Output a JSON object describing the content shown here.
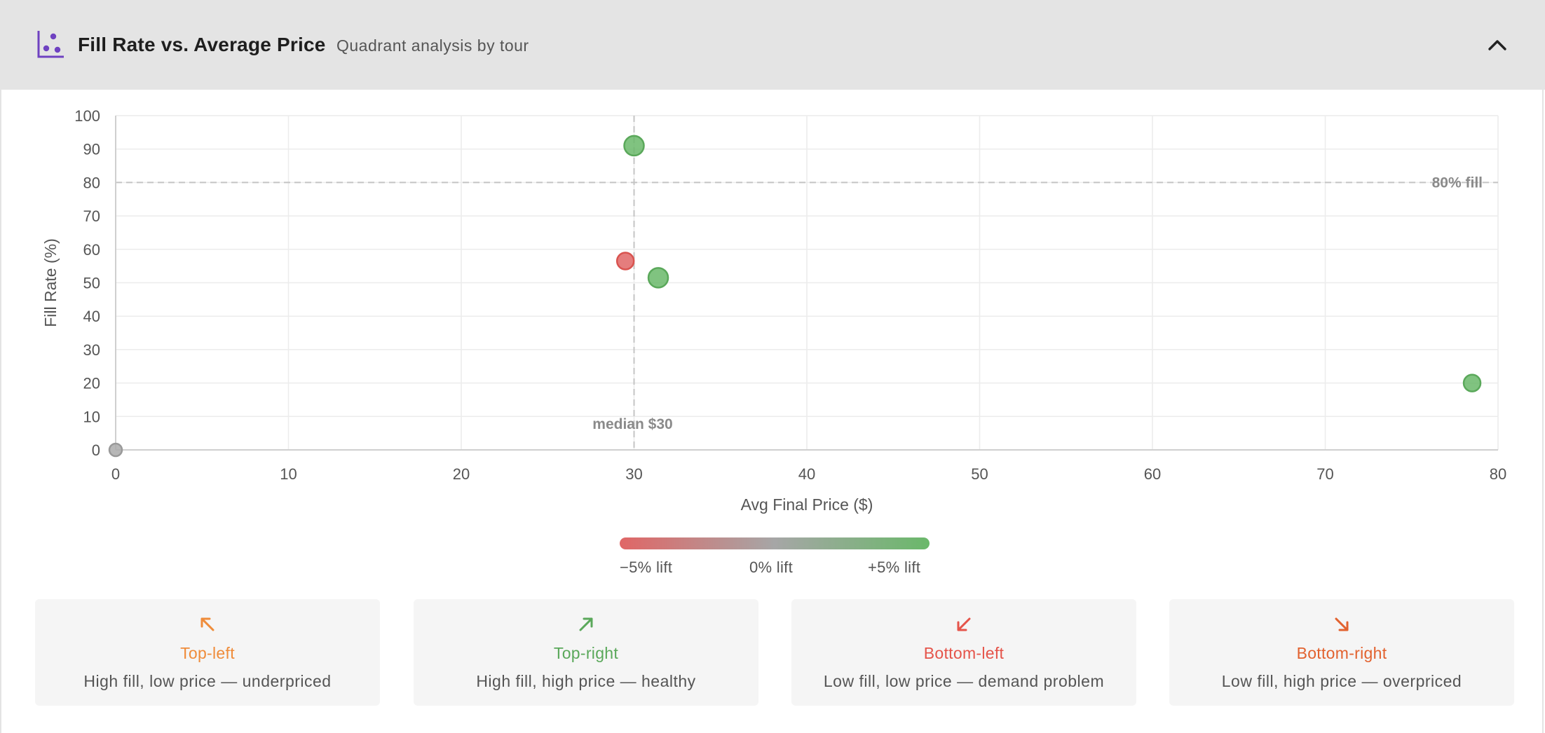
{
  "header": {
    "title": "Fill Rate vs. Average Price",
    "subtitle": "Quadrant analysis by tour",
    "icon": "scatter-chart-icon",
    "collapse_icon": "chevron-up-icon",
    "accent_color": "#6f42c1"
  },
  "chart_data": {
    "type": "scatter",
    "title": "Fill Rate vs. Average Price",
    "xlabel": "Avg Final Price ($)",
    "ylabel": "Fill Rate (%)",
    "xlim": [
      0,
      80
    ],
    "ylim": [
      0,
      100
    ],
    "x_ticks": [
      0,
      10,
      20,
      30,
      40,
      50,
      60,
      70,
      80
    ],
    "y_ticks": [
      0,
      10,
      20,
      30,
      40,
      50,
      60,
      70,
      80,
      90,
      100
    ],
    "grid": true,
    "points": [
      {
        "x": 30,
        "y": 91,
        "lift": "positive",
        "color": "#6ab86a",
        "size": "large"
      },
      {
        "x": 29.5,
        "y": 56.5,
        "lift": "negative",
        "color": "#e06666",
        "size": "medium"
      },
      {
        "x": 31.4,
        "y": 51.5,
        "lift": "positive",
        "color": "#6ab86a",
        "size": "large"
      },
      {
        "x": 78.5,
        "y": 20,
        "lift": "positive",
        "color": "#6ab86a",
        "size": "medium"
      },
      {
        "x": 0,
        "y": 0,
        "lift": "neutral",
        "color": "#aaaaaa",
        "size": "small"
      }
    ],
    "reference_lines": [
      {
        "axis": "x",
        "value": 30,
        "label": "median $30"
      },
      {
        "axis": "y",
        "value": 80,
        "label": "80% fill"
      }
    ]
  },
  "legend": {
    "low_label": "−5% lift",
    "mid_label": "0% lift",
    "high_label": "+5% lift",
    "low_color": "#e06666",
    "mid_color": "#a6a6a6",
    "high_color": "#6ab86a"
  },
  "quadrants": [
    {
      "arrow": "arrow-up-left-icon",
      "title": "Top-left",
      "description": "High fill, low price — underpriced",
      "color": "#ef8c3a"
    },
    {
      "arrow": "arrow-up-right-icon",
      "title": "Top-right",
      "description": "High fill, high price — healthy",
      "color": "#5aa85a"
    },
    {
      "arrow": "arrow-down-left-icon",
      "title": "Bottom-left",
      "description": "Low fill, low price — demand problem",
      "color": "#e5544a"
    },
    {
      "arrow": "arrow-down-right-icon",
      "title": "Bottom-right",
      "description": "Low fill, high price — overpriced",
      "color": "#e2622f"
    }
  ]
}
